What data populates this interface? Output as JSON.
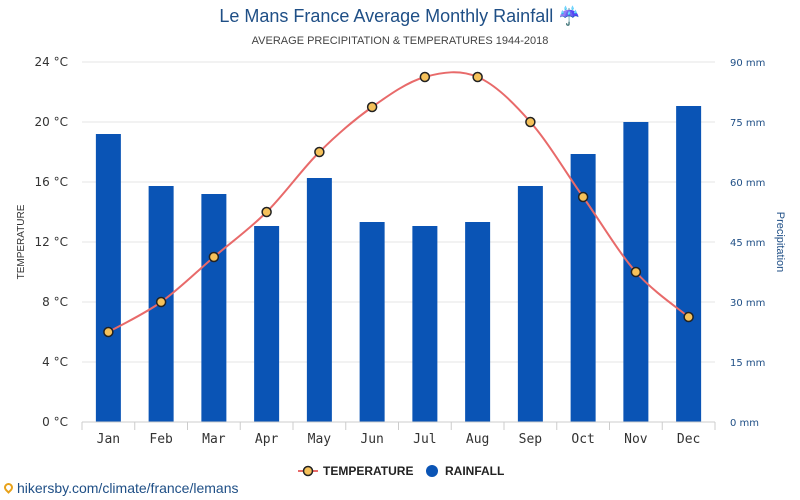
{
  "header": {
    "title": "Le Mans France Average Monthly Rainfall",
    "title_icon": "umbrella-rain-icon",
    "subtitle": "AVERAGE PRECIPITATION & TEMPERATURES 1944-2018"
  },
  "footer": {
    "source_icon": "location-pin-icon",
    "source": "hikersby.com/climate/france/lemans"
  },
  "chart_data": {
    "type": "bar",
    "categories": [
      "Jan",
      "Feb",
      "Mar",
      "Apr",
      "May",
      "Jun",
      "Jul",
      "Aug",
      "Sep",
      "Oct",
      "Nov",
      "Dec"
    ],
    "series": [
      {
        "name": "TEMPERATURE",
        "type": "line",
        "axis": "left",
        "color": "#e86a6a",
        "marker_color": "#f5c15a",
        "values": [
          6,
          8,
          11,
          14,
          18,
          21,
          23,
          23,
          20,
          15,
          10,
          7
        ]
      },
      {
        "name": "RAINFALL",
        "type": "bar",
        "axis": "right",
        "color": "#0a54b5",
        "values": [
          72,
          59,
          57,
          49,
          61,
          50,
          49,
          50,
          59,
          67,
          75,
          79
        ]
      }
    ],
    "yaxis_left": {
      "label": "TEMPERATURE",
      "ylim": [
        0,
        24
      ],
      "ticks": [
        0,
        4,
        8,
        12,
        16,
        20,
        24
      ],
      "tick_labels": [
        "0 °C",
        "4 °C",
        "8 °C",
        "12 °C",
        "16 °C",
        "20 °C",
        "24 °C"
      ]
    },
    "yaxis_right": {
      "label": "Precipitation",
      "ylim": [
        0,
        90
      ],
      "ticks": [
        0,
        15,
        30,
        45,
        60,
        75,
        90
      ],
      "tick_labels": [
        "0 mm",
        "15 mm",
        "30 mm",
        "45 mm",
        "60 mm",
        "75 mm",
        "90 mm"
      ]
    },
    "grid": true,
    "legend_position": "bottom-center"
  }
}
